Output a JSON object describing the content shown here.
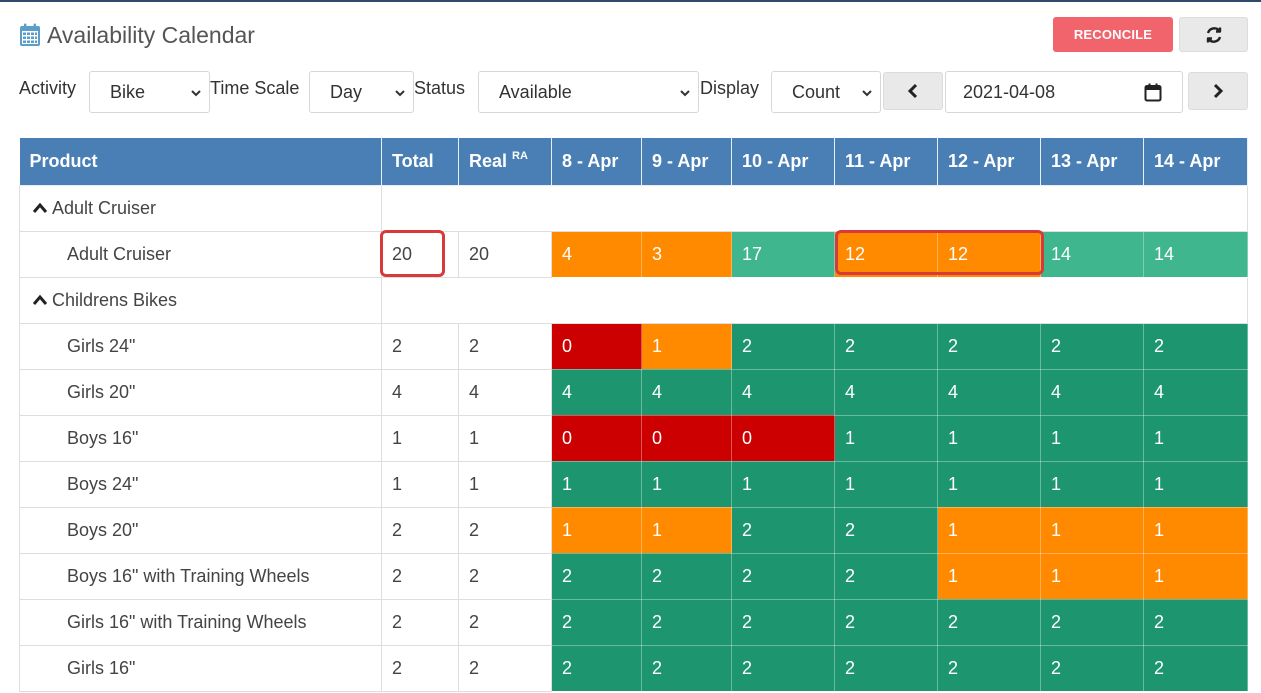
{
  "page": {
    "title": "Availability Calendar"
  },
  "actions": {
    "reconcile_label": "RECONCILE",
    "refresh_icon": "refresh-icon"
  },
  "filters": {
    "activity": {
      "label": "Activity",
      "value": "Bike"
    },
    "time_scale": {
      "label": "Time Scale",
      "value": "Day"
    },
    "status": {
      "label": "Status",
      "value": "Available"
    },
    "display": {
      "label": "Display",
      "value": "Count"
    },
    "date": {
      "value": "2021-04-08"
    }
  },
  "table": {
    "headers": {
      "product": "Product",
      "total": "Total",
      "real": "Real",
      "real_sup": "RA",
      "dates": [
        "8 - Apr",
        "9 - Apr",
        "10 - Apr",
        "11 - Apr",
        "12 - Apr",
        "13 - Apr",
        "14 - Apr"
      ]
    },
    "groups": [
      {
        "name": "Adult Cruiser",
        "rows": [
          {
            "name": "Adult Cruiser",
            "total": "20",
            "real": "20",
            "cells": [
              {
                "v": "4",
                "s": "orange"
              },
              {
                "v": "3",
                "s": "orange"
              },
              {
                "v": "17",
                "s": "lgreen"
              },
              {
                "v": "12",
                "s": "orange"
              },
              {
                "v": "12",
                "s": "orange"
              },
              {
                "v": "14",
                "s": "lgreen"
              },
              {
                "v": "14",
                "s": "lgreen"
              }
            ]
          }
        ]
      },
      {
        "name": "Childrens Bikes",
        "rows": [
          {
            "name": "Girls 24\"",
            "total": "2",
            "real": "2",
            "cells": [
              {
                "v": "0",
                "s": "red"
              },
              {
                "v": "1",
                "s": "orange"
              },
              {
                "v": "2",
                "s": "green"
              },
              {
                "v": "2",
                "s": "green"
              },
              {
                "v": "2",
                "s": "green"
              },
              {
                "v": "2",
                "s": "green"
              },
              {
                "v": "2",
                "s": "green"
              }
            ]
          },
          {
            "name": "Girls 20\"",
            "total": "4",
            "real": "4",
            "cells": [
              {
                "v": "4",
                "s": "green"
              },
              {
                "v": "4",
                "s": "green"
              },
              {
                "v": "4",
                "s": "green"
              },
              {
                "v": "4",
                "s": "green"
              },
              {
                "v": "4",
                "s": "green"
              },
              {
                "v": "4",
                "s": "green"
              },
              {
                "v": "4",
                "s": "green"
              }
            ]
          },
          {
            "name": "Boys 16\"",
            "total": "1",
            "real": "1",
            "cells": [
              {
                "v": "0",
                "s": "red"
              },
              {
                "v": "0",
                "s": "red"
              },
              {
                "v": "0",
                "s": "red"
              },
              {
                "v": "1",
                "s": "green"
              },
              {
                "v": "1",
                "s": "green"
              },
              {
                "v": "1",
                "s": "green"
              },
              {
                "v": "1",
                "s": "green"
              }
            ]
          },
          {
            "name": "Boys 24\"",
            "total": "1",
            "real": "1",
            "cells": [
              {
                "v": "1",
                "s": "green"
              },
              {
                "v": "1",
                "s": "green"
              },
              {
                "v": "1",
                "s": "green"
              },
              {
                "v": "1",
                "s": "green"
              },
              {
                "v": "1",
                "s": "green"
              },
              {
                "v": "1",
                "s": "green"
              },
              {
                "v": "1",
                "s": "green"
              }
            ]
          },
          {
            "name": "Boys 20\"",
            "total": "2",
            "real": "2",
            "cells": [
              {
                "v": "1",
                "s": "orange"
              },
              {
                "v": "1",
                "s": "orange"
              },
              {
                "v": "2",
                "s": "green"
              },
              {
                "v": "2",
                "s": "green"
              },
              {
                "v": "1",
                "s": "orange"
              },
              {
                "v": "1",
                "s": "orange"
              },
              {
                "v": "1",
                "s": "orange"
              }
            ]
          },
          {
            "name": "Boys 16\" with Training Wheels",
            "total": "2",
            "real": "2",
            "cells": [
              {
                "v": "2",
                "s": "green"
              },
              {
                "v": "2",
                "s": "green"
              },
              {
                "v": "2",
                "s": "green"
              },
              {
                "v": "2",
                "s": "green"
              },
              {
                "v": "1",
                "s": "orange"
              },
              {
                "v": "1",
                "s": "orange"
              },
              {
                "v": "1",
                "s": "orange"
              }
            ]
          },
          {
            "name": "Girls 16\" with Training Wheels",
            "total": "2",
            "real": "2",
            "cells": [
              {
                "v": "2",
                "s": "green"
              },
              {
                "v": "2",
                "s": "green"
              },
              {
                "v": "2",
                "s": "green"
              },
              {
                "v": "2",
                "s": "green"
              },
              {
                "v": "2",
                "s": "green"
              },
              {
                "v": "2",
                "s": "green"
              },
              {
                "v": "2",
                "s": "green"
              }
            ]
          },
          {
            "name": "Girls 16\"",
            "total": "2",
            "real": "2",
            "cells": [
              {
                "v": "2",
                "s": "green"
              },
              {
                "v": "2",
                "s": "green"
              },
              {
                "v": "2",
                "s": "green"
              },
              {
                "v": "2",
                "s": "green"
              },
              {
                "v": "2",
                "s": "green"
              },
              {
                "v": "2",
                "s": "green"
              },
              {
                "v": "2",
                "s": "green"
              }
            ]
          }
        ]
      }
    ]
  },
  "colors": {
    "red": "#cc0000",
    "orange": "#ff8a00",
    "green": "#1d9670",
    "lgreen": "#3fb68e",
    "header": "#4a7fb5",
    "highlight": "#d83a3a"
  }
}
